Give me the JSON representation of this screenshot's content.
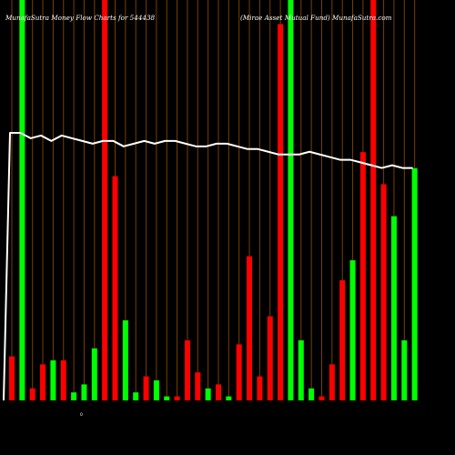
{
  "chart_data": {
    "type": "bar",
    "title_left": "MunafaSutra  Money Flow  Charts for 544438",
    "title_right": "(Mirae   Asset Mutual Fund) MunafaSutra.com",
    "zero_marker": "0",
    "colors": {
      "background": "#000000",
      "up": "#00ff00",
      "down": "#ff0000",
      "grid": "#7a3e00",
      "line": "#ffffff"
    },
    "grid": true,
    "ylim": [
      0,
      100
    ],
    "highlight_index_values": [
      0,
      27,
      34
    ],
    "bars": [
      {
        "color": "red",
        "value": 11
      },
      {
        "color": "green",
        "value": 100
      },
      {
        "color": "red",
        "value": 3
      },
      {
        "color": "red",
        "value": 9
      },
      {
        "color": "green",
        "value": 10
      },
      {
        "color": "red",
        "value": 10
      },
      {
        "color": "green",
        "value": 2
      },
      {
        "color": "green",
        "value": 4
      },
      {
        "color": "green",
        "value": 13
      },
      {
        "color": "red",
        "value": 100
      },
      {
        "color": "red",
        "value": 56
      },
      {
        "color": "green",
        "value": 20
      },
      {
        "color": "green",
        "value": 2
      },
      {
        "color": "red",
        "value": 6
      },
      {
        "color": "green",
        "value": 5
      },
      {
        "color": "green",
        "value": 1
      },
      {
        "color": "red",
        "value": 1
      },
      {
        "color": "red",
        "value": 15
      },
      {
        "color": "red",
        "value": 7
      },
      {
        "color": "green",
        "value": 3
      },
      {
        "color": "red",
        "value": 4
      },
      {
        "color": "green",
        "value": 1
      },
      {
        "color": "red",
        "value": 14
      },
      {
        "color": "red",
        "value": 36
      },
      {
        "color": "red",
        "value": 6
      },
      {
        "color": "red",
        "value": 21
      },
      {
        "color": "red",
        "value": 94
      },
      {
        "color": "green",
        "value": 100
      },
      {
        "color": "green",
        "value": 15
      },
      {
        "color": "green",
        "value": 3
      },
      {
        "color": "red",
        "value": 1
      },
      {
        "color": "red",
        "value": 9
      },
      {
        "color": "red",
        "value": 30
      },
      {
        "color": "green",
        "value": 35
      },
      {
        "color": "red",
        "value": 62
      },
      {
        "color": "red",
        "value": 100
      },
      {
        "color": "red",
        "value": 54
      },
      {
        "color": "green",
        "value": 46
      },
      {
        "color": "green",
        "value": 15
      },
      {
        "color": "green",
        "value": 58
      }
    ],
    "line": [
      0,
      99,
      99,
      97,
      98,
      96,
      98,
      97,
      96,
      95,
      96,
      96,
      94,
      95,
      96,
      95,
      96,
      96,
      95,
      94,
      94,
      95,
      95,
      94,
      93,
      93,
      92,
      91,
      91,
      91,
      92,
      91,
      90,
      89,
      89,
      88,
      87,
      86,
      87,
      86,
      86
    ]
  }
}
